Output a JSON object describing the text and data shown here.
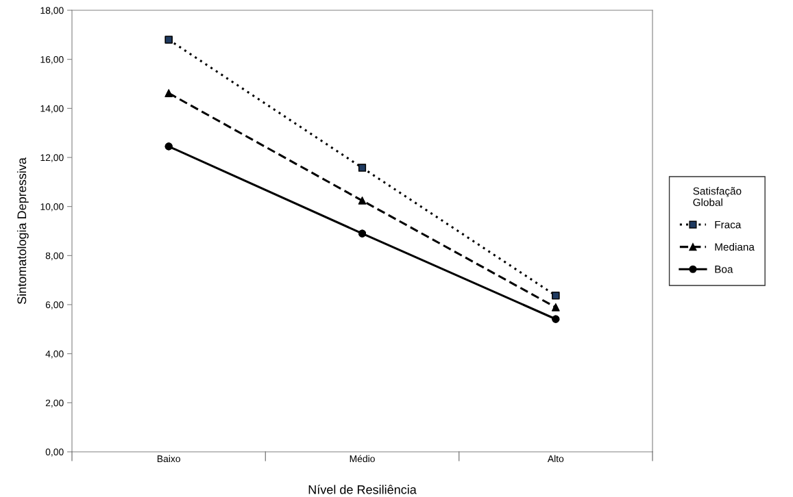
{
  "chart_data": {
    "type": "line",
    "xlabel": "Nível de Resiliência",
    "ylabel": "Sintomatologia Depressiva",
    "legend_title": "Satisfação\nGlobal",
    "categories": [
      "Baixo",
      "Médio",
      "Alto"
    ],
    "series": [
      {
        "name": "Fraca",
        "color": "#000000",
        "colors": [
          "#1f3a60",
          "#1f3a60",
          "#1f3a60"
        ],
        "marker": "square",
        "line_style": "dotted",
        "values": [
          16.8,
          11.58,
          6.37
        ]
      },
      {
        "name": "Mediana",
        "color": "#000000",
        "marker": "triangle",
        "line_style": "dashed",
        "values": [
          14.62,
          10.24,
          5.89
        ]
      },
      {
        "name": "Boa",
        "color": "#000000",
        "marker": "circle",
        "line_style": "solid",
        "values": [
          12.45,
          8.9,
          5.41
        ]
      }
    ],
    "ylim": [
      0,
      18
    ],
    "yticks": [
      {
        "value": 0,
        "label": "0,00"
      },
      {
        "value": 2,
        "label": "2,00"
      },
      {
        "value": 4,
        "label": "4,00"
      },
      {
        "value": 6,
        "label": "6,00"
      },
      {
        "value": 8,
        "label": "8,00"
      },
      {
        "value": 10,
        "label": "10,00"
      },
      {
        "value": 12,
        "label": "12,00"
      },
      {
        "value": 14,
        "label": "14,00"
      },
      {
        "value": 16,
        "label": "16,00"
      },
      {
        "value": 18,
        "label": "18,00"
      }
    ],
    "grid": false,
    "legend": "right"
  }
}
